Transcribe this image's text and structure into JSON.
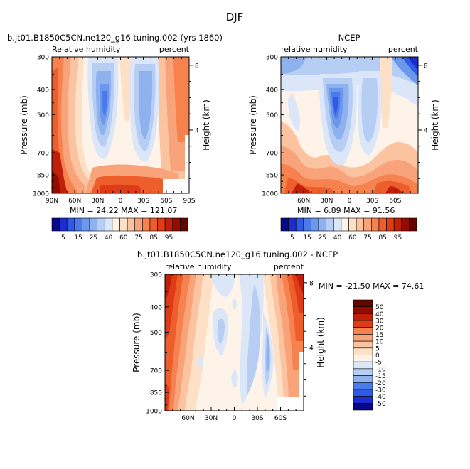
{
  "figure_title": "DJF",
  "chart_data": [
    {
      "type": "heatmap",
      "title": "b.jt01.B1850C5CN.ne120_g16.tuning.002 (yrs 1860)",
      "left_label": "Relative humidity",
      "right_label": "percent",
      "ylabel": "Pressure (mb)",
      "y2label": "Height (km)",
      "yticks": [
        "300",
        "400",
        "500",
        "700",
        "850",
        "1000"
      ],
      "y2ticks": [
        "8",
        "4"
      ],
      "xticks": [
        "90N",
        "60N",
        "30N",
        "0",
        "30S",
        "60S",
        "90S"
      ],
      "stats": "MIN =  24.22   MAX = 121.07",
      "min": 24.22,
      "max": 121.07,
      "colorbar_labels": [
        "5",
        "15",
        "25",
        "40",
        "60",
        "75",
        "85",
        "95"
      ],
      "grid": false
    },
    {
      "type": "heatmap",
      "title": "NCEP",
      "left_label": "relative humidity",
      "right_label": "percent",
      "ylabel": "Pressure (mb)",
      "y2label": "Height (km)",
      "yticks": [
        "300",
        "400",
        "500",
        "700",
        "850",
        "1000"
      ],
      "y2ticks": [
        "8",
        "4"
      ],
      "xticks": [
        "60N",
        "30N",
        "0",
        "30S",
        "60S"
      ],
      "stats": "MIN =   6.89   MAX =  91.56",
      "min": 6.89,
      "max": 91.56,
      "colorbar_labels": [
        "5",
        "15",
        "25",
        "40",
        "60",
        "75",
        "85",
        "95"
      ],
      "grid": false
    },
    {
      "type": "heatmap",
      "title": "b.jt01.B1850C5CN.ne120_g16.tuning.002 - NCEP",
      "left_label": "relative humidity",
      "right_label": "percent",
      "ylabel": "Pressure (mb)",
      "y2label": "Height (km)",
      "yticks": [
        "300",
        "400",
        "500",
        "700",
        "850",
        "1000"
      ],
      "y2ticks": [
        "8",
        "4"
      ],
      "xticks": [
        "60N",
        "30N",
        "0",
        "30S",
        "60S"
      ],
      "stats": "MIN = -21.50   MAX =  74.61",
      "min": -21.5,
      "max": 74.61,
      "colorbar_labels": [
        "50",
        "40",
        "30",
        "20",
        "15",
        "10",
        "5",
        "0",
        "-5",
        "-10",
        "-15",
        "-20",
        "-30",
        "-40",
        "-50"
      ],
      "grid": false
    }
  ],
  "colors": {
    "seq": [
      "#08088a",
      "#1c2cd0",
      "#2f5ae6",
      "#4c7ae8",
      "#6b98ea",
      "#8fb2ee",
      "#b6cef3",
      "#dbe7f8",
      "#fdf3e8",
      "#fde0c6",
      "#fcc3a0",
      "#f9a37a",
      "#f5824f",
      "#ee5e2c",
      "#df3b16",
      "#c02008",
      "#940c00",
      "#640600"
    ]
  }
}
